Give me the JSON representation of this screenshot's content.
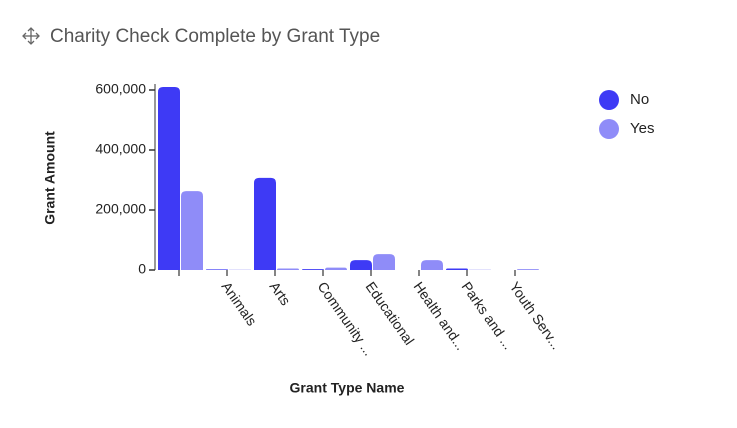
{
  "chart_data": {
    "type": "bar",
    "title": "Charity Check Complete by Grant Type",
    "x_label": "Grant Type Name",
    "y_label": "Grant Amount",
    "categories": [
      null,
      "Animals",
      "Arts",
      "Community ...",
      "Educational",
      "Health and...",
      "Parks and ...",
      "Youth Serv..."
    ],
    "series": [
      {
        "name": "No",
        "color": "#3e3af5",
        "values": [
          610000,
          2000,
          307000,
          3000,
          33000,
          0,
          5000,
          0
        ]
      },
      {
        "name": "Yes",
        "color": "#8f8cf8",
        "values": [
          263000,
          1000,
          5000,
          8000,
          53000,
          33000,
          1000,
          3000
        ]
      }
    ],
    "ylim": [
      0,
      620000
    ],
    "yticks": [
      0,
      {
        "value": 200000,
        "label": "200,000"
      },
      {
        "value": 400000,
        "label": "400,000"
      },
      {
        "value": 600000,
        "label": "600,000"
      }
    ],
    "legend": "top-right"
  }
}
